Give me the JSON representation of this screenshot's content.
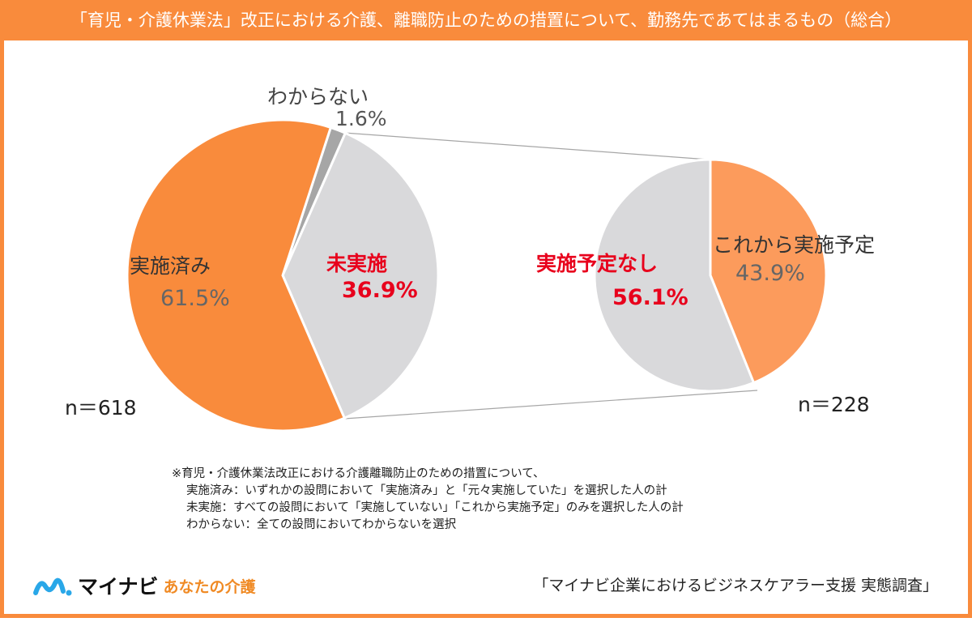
{
  "title": "「育児・介護休業法」改正における介護、離職防止のための措置について、勤務先であてはまるもの（総合）",
  "colors": {
    "orange": "#f98b3c",
    "light_orange": "#fc9b5c",
    "grey": "#d9d9db",
    "dark_grey": "#a6a6a6",
    "red": "#e8001c",
    "border": "#f98b3c"
  },
  "chart_data": [
    {
      "type": "pie",
      "n_label": "n＝618",
      "slices": [
        {
          "name": "わからない",
          "value": 1.6,
          "label": "1.6%"
        },
        {
          "name": "未実施",
          "value": 36.9,
          "label": "36.9%"
        },
        {
          "name": "実施済み",
          "value": 61.5,
          "label": "61.5%"
        }
      ]
    },
    {
      "type": "pie",
      "n_label": "n＝228",
      "breakdown_of": "未実施",
      "slices": [
        {
          "name": "これから実施予定",
          "value": 43.9,
          "label": "43.9%"
        },
        {
          "name": "実施予定なし",
          "value": 56.1,
          "label": "56.1%"
        }
      ]
    }
  ],
  "notes": [
    "※育児・介護休業法改正における介護離職防止のための措置について、",
    "実施済み：いずれかの設問において「実施済み」と「元々実施していた」を選択した人の計",
    "未実施：すべての設問において「実施していない」「これから実施予定」のみを選択した人の計",
    "わからない：全ての設問においてわからないを選択"
  ],
  "logo": {
    "brand": "マイナビ",
    "sub": "あなたの介護"
  },
  "source": "「マイナビ企業におけるビジネスケアラー支援 実態調査」"
}
